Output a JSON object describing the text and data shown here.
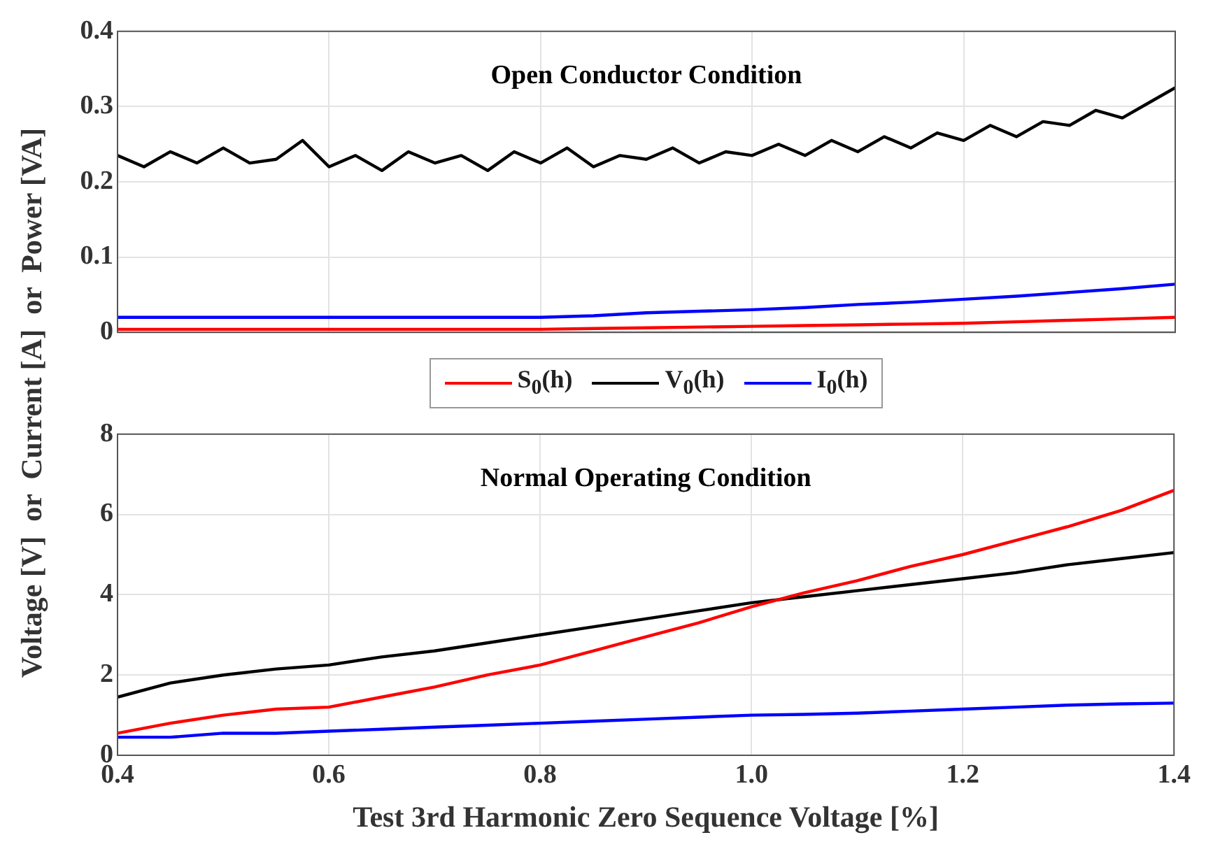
{
  "chart_data": [
    {
      "type": "line",
      "title": "Open Conductor Condition",
      "ylabel": "Voltage [V]  or  Current [A]  or  Power [VA]",
      "x": [
        0.4,
        0.45,
        0.5,
        0.55,
        0.6,
        0.65,
        0.7,
        0.75,
        0.8,
        0.85,
        0.9,
        0.95,
        1.0,
        1.05,
        1.1,
        1.15,
        1.2,
        1.25,
        1.3,
        1.35,
        1.4
      ],
      "xlim": [
        0.4,
        1.4
      ],
      "xticks": [
        0.4,
        0.6,
        0.8,
        1,
        1.2,
        1.4
      ],
      "ylim": [
        0,
        0.4
      ],
      "yticks": [
        0,
        0.1,
        0.2,
        0.3,
        0.4
      ],
      "grid": true,
      "legend": "bottom",
      "tick_labels": "y",
      "series": [
        {
          "name": "S$_{0}$(h)",
          "color": "#ff0000",
          "values": [
            0.004,
            0.004,
            0.004,
            0.004,
            0.004,
            0.004,
            0.004,
            0.004,
            0.004,
            0.005,
            0.006,
            0.007,
            0.008,
            0.009,
            0.01,
            0.011,
            0.012,
            0.014,
            0.016,
            0.018,
            0.02
          ]
        },
        {
          "name": "V$_{0}$(h)",
          "color": "#000000",
          "x": [
            0.4,
            0.425,
            0.45,
            0.475,
            0.5,
            0.525,
            0.55,
            0.575,
            0.6,
            0.625,
            0.65,
            0.675,
            0.7,
            0.725,
            0.75,
            0.775,
            0.8,
            0.825,
            0.85,
            0.875,
            0.9,
            0.925,
            0.95,
            0.975,
            1.0,
            1.025,
            1.05,
            1.075,
            1.1,
            1.125,
            1.15,
            1.175,
            1.2,
            1.225,
            1.25,
            1.275,
            1.3,
            1.325,
            1.35,
            1.375,
            1.4
          ],
          "values": [
            0.235,
            0.22,
            0.24,
            0.225,
            0.245,
            0.225,
            0.23,
            0.255,
            0.22,
            0.235,
            0.215,
            0.24,
            0.225,
            0.235,
            0.215,
            0.24,
            0.225,
            0.245,
            0.22,
            0.235,
            0.23,
            0.245,
            0.225,
            0.24,
            0.235,
            0.25,
            0.235,
            0.255,
            0.24,
            0.26,
            0.245,
            0.265,
            0.255,
            0.275,
            0.26,
            0.28,
            0.275,
            0.295,
            0.285,
            0.305,
            0.325
          ]
        },
        {
          "name": "I$_{0}$(h)",
          "color": "#0000ff",
          "values": [
            0.02,
            0.02,
            0.02,
            0.02,
            0.02,
            0.02,
            0.02,
            0.02,
            0.02,
            0.022,
            0.026,
            0.028,
            0.03,
            0.033,
            0.037,
            0.04,
            0.044,
            0.048,
            0.053,
            0.058,
            0.064
          ]
        }
      ]
    },
    {
      "type": "line",
      "title": "Normal Operating Condition",
      "xlabel": "Test 3rd Harmonic Zero Sequence Voltage [%]",
      "x": [
        0.4,
        0.45,
        0.5,
        0.55,
        0.6,
        0.65,
        0.7,
        0.75,
        0.8,
        0.85,
        0.9,
        0.95,
        1.0,
        1.05,
        1.1,
        1.15,
        1.2,
        1.25,
        1.3,
        1.35,
        1.4
      ],
      "xlim": [
        0.4,
        1.4
      ],
      "xticks": [
        0.4,
        0.6,
        0.8,
        {
          "value": 1.0,
          "label": "1.0"
        },
        1.2,
        1.4
      ],
      "ylim": [
        0,
        8
      ],
      "yticks": [
        0,
        2,
        4,
        6,
        8
      ],
      "grid": true,
      "series": [
        {
          "color": "#ff0000",
          "values": [
            0.55,
            0.8,
            1.0,
            1.15,
            1.2,
            1.45,
            1.7,
            2.0,
            2.25,
            2.6,
            2.95,
            3.3,
            3.7,
            4.05,
            4.35,
            4.7,
            5.0,
            5.35,
            5.7,
            6.1,
            6.6
          ]
        },
        {
          "color": "#000000",
          "values": [
            1.45,
            1.8,
            2.0,
            2.15,
            2.25,
            2.45,
            2.6,
            2.8,
            3.0,
            3.2,
            3.4,
            3.6,
            3.8,
            3.95,
            4.1,
            4.25,
            4.4,
            4.55,
            4.75,
            4.9,
            5.05
          ]
        },
        {
          "color": "#0000ff",
          "values": [
            0.45,
            0.45,
            0.55,
            0.55,
            0.6,
            0.65,
            0.7,
            0.75,
            0.8,
            0.85,
            0.9,
            0.95,
            1.0,
            1.02,
            1.05,
            1.1,
            1.15,
            1.2,
            1.25,
            1.28,
            1.3
          ]
        }
      ]
    }
  ]
}
